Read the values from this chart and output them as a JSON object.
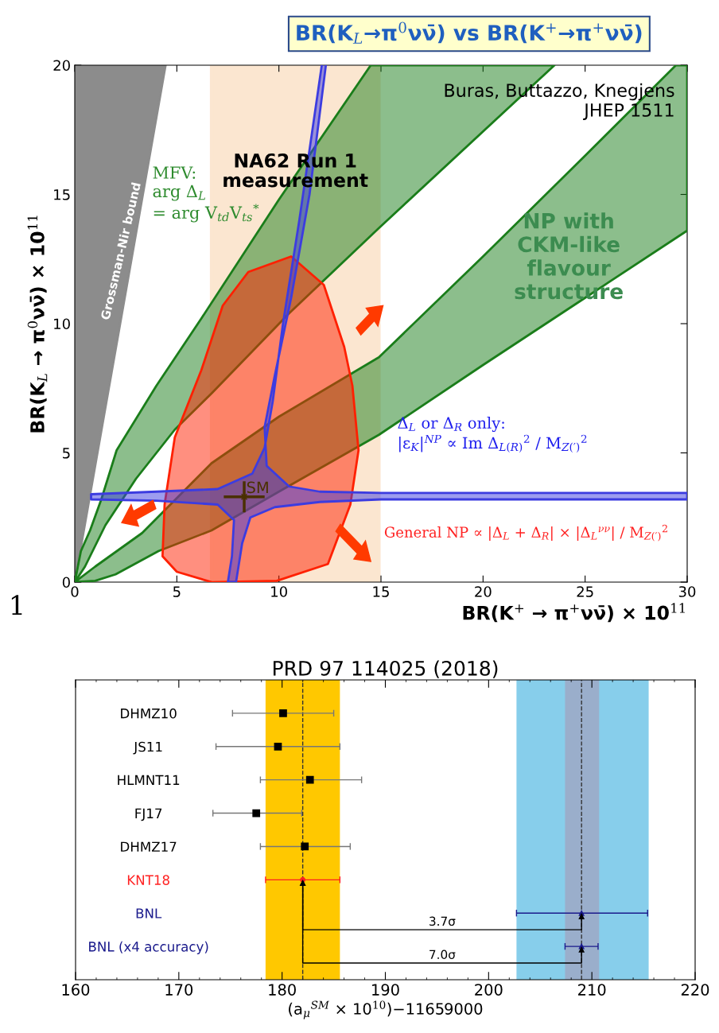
{
  "chart_data": [
    {
      "type": "area",
      "title": "BR(K$_{L}$→π$^{0}$νν̄) vs BR(K$^{+}$→π$^{+}$νν̄)",
      "xlabel": "BR(K$^{+}$ → π$^{+}$νν̄) × 10$^{11}$",
      "ylabel": "BR(K$_{L}$ → π$^{0}$νν̄) × 10$^{11}$",
      "xlim": [
        0,
        30
      ],
      "ylim": [
        0,
        20
      ],
      "xticks": [
        0,
        5,
        10,
        15,
        20,
        25,
        30
      ],
      "yticks": [
        0,
        5,
        10,
        15,
        20
      ],
      "bands": [
        {
          "axis": "x",
          "from": 6.7,
          "to": 14.9,
          "label": "NA62 Run 1\nmeasurement",
          "color": "#f8c898"
        }
      ],
      "series": [
        {
          "color": "#8c8c8c",
          "x": [
            0,
            4.45,
            0
          ],
          "values": [
            0,
            20,
            20
          ]
        },
        {
          "color": "#1a7d1a",
          "x": [
            0,
            0.3,
            0.75,
            1.3,
            2.05,
            4,
            6.2,
            10,
            14.5,
            23.5,
            14.9,
            10.5,
            6.7,
            4.9,
            3,
            1.5,
            0.5,
            0
          ],
          "values": [
            0,
            1.2,
            2.0,
            3.2,
            5.1,
            7.6,
            10.2,
            14.8,
            20,
            20,
            13.7,
            10.4,
            7.3,
            5.9,
            4.0,
            2.2,
            0.6,
            0
          ]
        },
        {
          "color": "#1a7d1a",
          "x": [
            0,
            1,
            3.3,
            6.7,
            10,
            14.9,
            20,
            25,
            29.45,
            30,
            30,
            25,
            20,
            14.9,
            10,
            6.7,
            4.1,
            2,
            1,
            0
          ],
          "values": [
            0,
            0.6,
            1.9,
            4.6,
            6.4,
            8.7,
            12.6,
            16.5,
            20,
            20,
            13.6,
            11.0,
            8.4,
            5.7,
            3.5,
            2.0,
            1.2,
            0.3,
            0.05,
            0
          ]
        },
        {
          "color": "#ff2000",
          "x": [
            6.7,
            5.0,
            4.3,
            4.4,
            4.9,
            6.2,
            7.25,
            8.5,
            10.6,
            12.2,
            13.2,
            13.6,
            13.9,
            13.5,
            12.4,
            9.9,
            6.7
          ],
          "values": [
            0,
            0.4,
            1.0,
            3.0,
            5.6,
            8.2,
            10.7,
            12.0,
            12.6,
            11.5,
            9.1,
            7.6,
            5.1,
            3.0,
            0.7,
            0.05,
            0
          ]
        },
        {
          "color": "#3c3ce0",
          "x": [
            12.1,
            11,
            10.2,
            9.7,
            9.3,
            8.7,
            7.0,
            4,
            0.8,
            0.8,
            4,
            7.0,
            7.8,
            7.7,
            7.5,
            7.9,
            8.2,
            8.6,
            9.8,
            12,
            15,
            30,
            30,
            15,
            12,
            10.5,
            9.4,
            9.3,
            9.8,
            10.6,
            11.5,
            12.3
          ],
          "values": [
            20,
            14,
            10,
            7,
            5.2,
            4.2,
            3.6,
            3.5,
            3.4,
            3.2,
            3.15,
            3.0,
            2.4,
            1.0,
            0,
            0,
            1.5,
            2.5,
            2.9,
            3.1,
            3.2,
            3.2,
            3.45,
            3.45,
            3.5,
            3.7,
            4.5,
            6,
            8,
            11,
            15,
            20
          ]
        },
        {
          "type": "scatter",
          "name": "SM",
          "color": "#4a3000",
          "marker": "cross",
          "x": [
            8.3
          ],
          "values": [
            3.3
          ],
          "errors": [
            0.6
          ],
          "xerrors": [
            1.0
          ]
        }
      ],
      "annotations": [
        "Buras, Buttazzo, Knegjens\nJHEP 1511",
        "MFV:\narg Δ$_{L}$\n= arg V$_{td}$V$_{ts}$$^{*}$",
        "NP with\nCKM-like\nflavour\nstructure",
        "Grossman-Nir bound",
        "Δ$_{L}$ or Δ$_{R}$ only:\n|ε$_{K}$|$^{NP}$ ∝ Im Δ$_{L(R)}$$^{2}$ / M$_{Z(′)}$$^{2}$",
        "General NP ∝ |Δ$_{L}$ + Δ$_{R}$| × |Δ$_{L}$$^{νν}$| / M$_{Z(′)}$$^{2}$",
        "1"
      ]
    },
    {
      "type": "scatter",
      "orientation": "horizontal",
      "title": "PRD 97 114025 (2018)",
      "xlabel": "(a$_{μ}$$^{SM}$ × 10$^{10}$)−11659000",
      "xlim": [
        160,
        220
      ],
      "xticks": [
        160,
        170,
        180,
        190,
        200,
        210,
        220
      ],
      "categories": [
        "DHMZ10",
        "JS11",
        "HLMNT11",
        "FJ17",
        "DHMZ17",
        "KNT18",
        "BNL",
        "BNL (x4 accuracy)"
      ],
      "series": [
        {
          "color": "#000000",
          "marker": "square",
          "values": [
            180.1,
            179.6,
            182.7,
            177.5,
            182.2,
            null,
            null,
            null
          ],
          "errors": [
            [
              175.2,
              185.0
            ],
            [
              173.6,
              185.6
            ],
            [
              177.9,
              187.7
            ],
            [
              173.3,
              181.9
            ],
            [
              177.9,
              186.6
            ],
            null,
            null,
            null
          ]
        },
        {
          "color": "#ff2020",
          "marker": "circle",
          "values": [
            null,
            null,
            null,
            null,
            null,
            182.0,
            null,
            null
          ],
          "errors": [
            null,
            null,
            null,
            null,
            null,
            [
              178.4,
              185.6
            ],
            null,
            null
          ]
        },
        {
          "color": "#1a1a8c",
          "marker": "triangle",
          "values": [
            null,
            null,
            null,
            null,
            null,
            null,
            209.0,
            209.0
          ],
          "errors": [
            null,
            null,
            null,
            null,
            null,
            null,
            [
              202.7,
              215.4
            ],
            [
              207.4,
              210.6
            ]
          ]
        }
      ],
      "bands": [
        {
          "axis": "x",
          "from": 178.4,
          "to": 185.6,
          "color": "#ffc800"
        },
        {
          "axis": "x",
          "from": 202.7,
          "to": 215.5,
          "color": "#87ceeb"
        },
        {
          "axis": "x",
          "from": 207.4,
          "to": 210.7,
          "color": "#9aaecb"
        }
      ],
      "ref_lines": [
        {
          "axis": "x",
          "value": 182.0,
          "line_style": "dashed",
          "color": "#333333"
        },
        {
          "axis": "x",
          "value": 209.0,
          "line_style": "dashed",
          "color": "#333333"
        }
      ],
      "annotations": [
        "3.7σ",
        "7.0σ"
      ]
    }
  ]
}
